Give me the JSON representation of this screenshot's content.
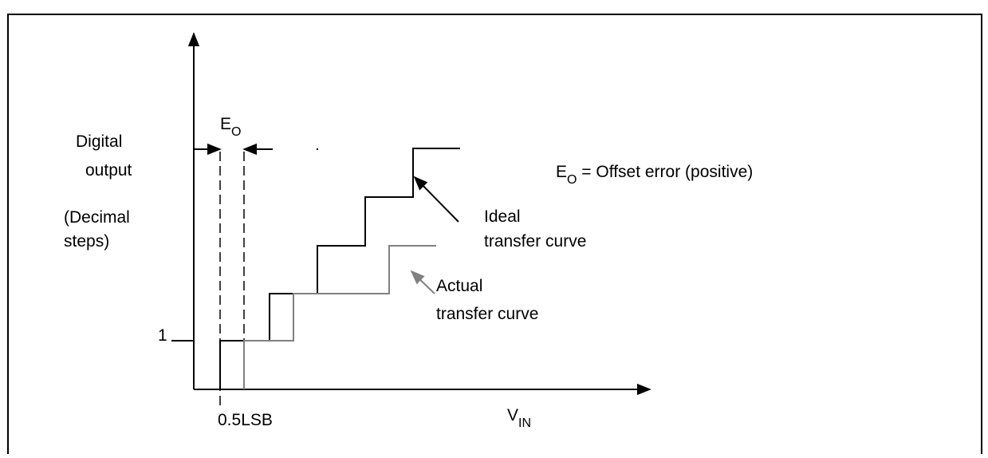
{
  "y_axis_label": {
    "line1": "Digital",
    "line2": "output",
    "line3": "(Decimal",
    "line4": "steps)"
  },
  "tick_label": "1",
  "offset_marker": {
    "main": "E",
    "sub": "O"
  },
  "legend": {
    "main": "E",
    "sub": "O",
    "rest": " = Offset error (positive)"
  },
  "ideal_label": {
    "line1": "Ideal",
    "line2": "transfer curve"
  },
  "actual_label": {
    "line1": "Actual",
    "line2": "transfer curve"
  },
  "x_axis_label": {
    "main": "V",
    "sub": "IN"
  },
  "lsb_label": "0.5LSB"
}
